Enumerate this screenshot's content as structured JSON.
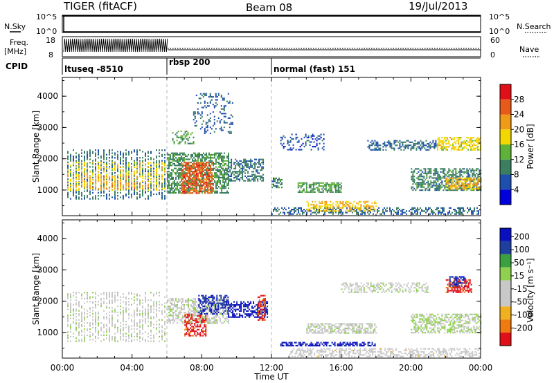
{
  "header": {
    "radar": "TIGER (fitACF)",
    "beam": "Beam 08",
    "date": "19/Jul/2013"
  },
  "top_panels": {
    "nsky_label": "N.Sky",
    "nsky_ticks": [
      "10^5",
      "10^0"
    ],
    "nsearch_ticks": [
      "10^5",
      "10^0"
    ],
    "nsearch_label": "N.Search",
    "freq_label": "Freq.",
    "freq_unit": "[MHz]",
    "freq_ticks": [
      "18",
      "8"
    ],
    "nave_ticks": [
      "60",
      "0"
    ],
    "nave_label": "Nave",
    "cpid_label": "CPID"
  },
  "cpid": [
    {
      "name": "ltuseq -8510",
      "start": 0,
      "end": 6
    },
    {
      "name": "rbsp 200",
      "start": 6,
      "end": 12
    },
    {
      "name": "normal (fast) 151",
      "start": 12,
      "end": 24
    }
  ],
  "colors": {
    "power": [
      "#0000dd",
      "#1f4fae",
      "#3c7f60",
      "#5eb23a",
      "#f2d800",
      "#f09a1a",
      "#e85a1a",
      "#e0101a"
    ],
    "velocity": [
      "#e0101a",
      "#f07a10",
      "#f0b020",
      "#c8c8c8",
      "#c8c8c8",
      "#90d050",
      "#3aa040",
      "#1f3fa0",
      "#0a10c0"
    ]
  },
  "chart_data": [
    {
      "type": "heatmap",
      "title": "",
      "xlabel": "Time UT",
      "ylabel": "Slant Range [km]",
      "xlim": [
        0,
        24
      ],
      "ylim": [
        180,
        4600
      ],
      "x_ticks": [
        "00:00",
        "04:00",
        "08:00",
        "12:00",
        "16:00",
        "20:00",
        "00:00"
      ],
      "y_ticks": [
        "1000",
        "2000",
        "3000",
        "4000"
      ],
      "colorbar_label": "Power [dB]",
      "colorbar_ticks": [
        "4",
        "8",
        "12",
        "16",
        "20",
        "24",
        "28"
      ],
      "clim": [
        0,
        32
      ],
      "regions": [
        {
          "t0": 0.2,
          "t1": 6.0,
          "r0": 700,
          "r1": 2300,
          "value": 9,
          "density": 0.55,
          "striped": true
        },
        {
          "t0": 0.2,
          "t1": 6.0,
          "r0": 1000,
          "r1": 1900,
          "value": 18,
          "density": 0.5,
          "striped": true
        },
        {
          "t0": 1.0,
          "t1": 5.0,
          "r0": 1050,
          "r1": 1450,
          "value": 22,
          "density": 0.45,
          "striped": true
        },
        {
          "t0": 6.0,
          "t1": 9.5,
          "r0": 900,
          "r1": 2200,
          "value": 11,
          "density": 0.6
        },
        {
          "t0": 6.8,
          "t1": 8.6,
          "r0": 900,
          "r1": 1900,
          "value": 26,
          "density": 0.65
        },
        {
          "t0": 6.3,
          "t1": 7.5,
          "r0": 2500,
          "r1": 2900,
          "value": 12,
          "density": 0.35
        },
        {
          "t0": 7.5,
          "t1": 9.8,
          "r0": 2800,
          "r1": 4100,
          "value": 7,
          "density": 0.2
        },
        {
          "t0": 9.5,
          "t1": 11.5,
          "r0": 1300,
          "r1": 2000,
          "value": 9,
          "density": 0.5
        },
        {
          "t0": 12.0,
          "t1": 24.0,
          "r0": 230,
          "r1": 450,
          "value": 8,
          "density": 0.45
        },
        {
          "t0": 14.0,
          "t1": 18.0,
          "r0": 350,
          "r1": 650,
          "value": 20,
          "density": 0.5
        },
        {
          "t0": 12.0,
          "t1": 12.6,
          "r0": 1100,
          "r1": 1400,
          "value": 10,
          "density": 0.6
        },
        {
          "t0": 13.5,
          "t1": 16.0,
          "r0": 950,
          "r1": 1250,
          "value": 12,
          "density": 0.6
        },
        {
          "t0": 12.5,
          "t1": 15.0,
          "r0": 2300,
          "r1": 2800,
          "value": 6,
          "density": 0.25
        },
        {
          "t0": 17.5,
          "t1": 21.5,
          "r0": 2300,
          "r1": 2600,
          "value": 8,
          "density": 0.45
        },
        {
          "t0": 21.5,
          "t1": 24.0,
          "r0": 2300,
          "r1": 2700,
          "value": 18,
          "density": 0.55
        },
        {
          "t0": 20.0,
          "t1": 24.0,
          "r0": 1000,
          "r1": 1700,
          "value": 10,
          "density": 0.55
        },
        {
          "t0": 22.0,
          "t1": 24.0,
          "r0": 1050,
          "r1": 1400,
          "value": 21,
          "density": 0.55
        }
      ]
    },
    {
      "type": "heatmap",
      "title": "",
      "xlabel": "Time UT",
      "ylabel": "Slant Range [km]",
      "xlim": [
        0,
        24
      ],
      "ylim": [
        180,
        4600
      ],
      "x_ticks": [
        "00:00",
        "04:00",
        "08:00",
        "12:00",
        "16:00",
        "20:00",
        "00:00"
      ],
      "y_ticks": [
        "1000",
        "2000",
        "3000",
        "4000"
      ],
      "colorbar_label": "Velocity [m s⁻¹]",
      "colorbar_ticks": [
        "200",
        "100",
        "50",
        "15",
        "-15",
        "-50",
        "-100",
        "-200"
      ],
      "clim": [
        -250,
        250
      ],
      "regions": [
        {
          "t0": 0.2,
          "t1": 6.0,
          "r0": 700,
          "r1": 2300,
          "value": 0,
          "density": 0.5,
          "striped": true
        },
        {
          "t0": 6.0,
          "t1": 9.5,
          "r0": 1300,
          "r1": 2100,
          "value": 0,
          "density": 0.55
        },
        {
          "t0": 7.0,
          "t1": 8.2,
          "r0": 900,
          "r1": 1600,
          "value": -220,
          "density": 0.55
        },
        {
          "t0": 7.8,
          "t1": 9.5,
          "r0": 1600,
          "r1": 2200,
          "value": 200,
          "density": 0.5
        },
        {
          "t0": 9.5,
          "t1": 11.8,
          "r0": 1500,
          "r1": 2000,
          "value": 220,
          "density": 0.5
        },
        {
          "t0": 11.2,
          "t1": 11.6,
          "r0": 1400,
          "r1": 2200,
          "value": -200,
          "density": 0.55
        },
        {
          "t0": 12.5,
          "t1": 18.0,
          "r0": 600,
          "r1": 700,
          "value": 220,
          "density": 0.6
        },
        {
          "t0": 13.0,
          "t1": 24.0,
          "r0": 220,
          "r1": 500,
          "value": -40,
          "density": 0.45
        },
        {
          "t0": 14.0,
          "t1": 18.0,
          "r0": 1000,
          "r1": 1300,
          "value": 0,
          "density": 0.6
        },
        {
          "t0": 16.0,
          "t1": 21.0,
          "r0": 2300,
          "r1": 2600,
          "value": 0,
          "density": 0.45
        },
        {
          "t0": 20.0,
          "t1": 24.0,
          "r0": 1000,
          "r1": 1600,
          "value": 30,
          "density": 0.55
        },
        {
          "t0": 22.0,
          "t1": 23.5,
          "r0": 2300,
          "r1": 2700,
          "value": -220,
          "density": 0.55
        },
        {
          "t0": 22.2,
          "t1": 23.2,
          "r0": 2500,
          "r1": 2800,
          "value": 200,
          "density": 0.45
        }
      ]
    }
  ]
}
